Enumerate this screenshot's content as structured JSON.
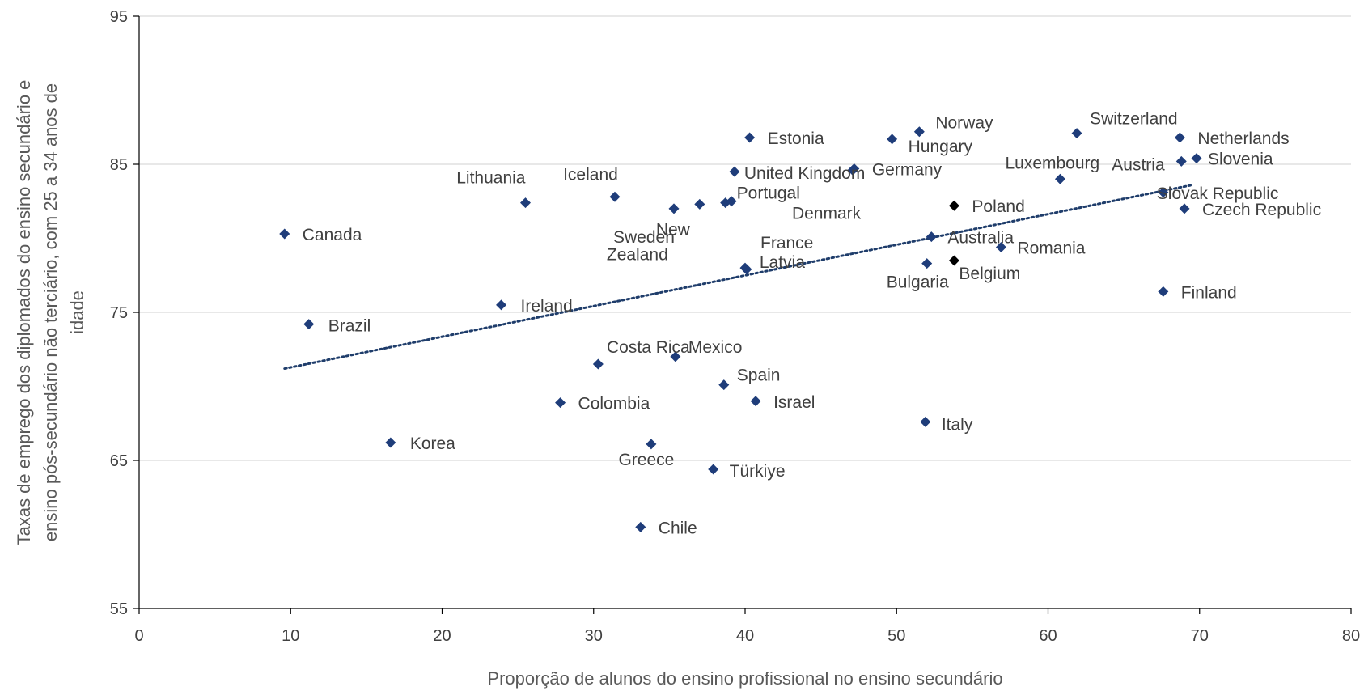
{
  "chart_data": {
    "type": "scatter",
    "xlabel": "Proporção de alunos do ensino profissional no ensino secundário",
    "ylabel_lines": [
      "Taxas de emprego dos diplomados do ensino secundário e",
      "ensino pós-secundário não terciário, com 25 a 34 anos de",
      "idade"
    ],
    "xlim": [
      0,
      80
    ],
    "ylim": [
      55,
      95
    ],
    "x_ticks": [
      "0",
      "10",
      "20",
      "30",
      "40",
      "50",
      "60",
      "70",
      "80"
    ],
    "y_ticks": [
      "55",
      "65",
      "75",
      "85",
      "95"
    ],
    "grid": "horizontal",
    "colors": {
      "point": "#1f3d7a",
      "highlight": "#000000",
      "trendline": "#1f3d6b",
      "grid": "#d9d9d9",
      "axis": "#000000"
    },
    "trendline": {
      "style": "dotted",
      "x": [
        9.6,
        69.5
      ],
      "y": [
        71.2,
        83.6
      ]
    },
    "points": [
      {
        "label": "Canada",
        "x": 9.6,
        "y": 80.3
      },
      {
        "label": "Brazil",
        "x": 11.2,
        "y": 74.2
      },
      {
        "label": "Korea",
        "x": 16.6,
        "y": 66.2
      },
      {
        "label": "Ireland",
        "x": 23.9,
        "y": 75.5
      },
      {
        "label": "Lithuania",
        "x": 25.5,
        "y": 82.4
      },
      {
        "label": "Colombia",
        "x": 27.8,
        "y": 68.9
      },
      {
        "label": "Costa Rica",
        "x": 30.3,
        "y": 71.5
      },
      {
        "label": "Iceland",
        "x": 31.4,
        "y": 82.8
      },
      {
        "label": "Chile",
        "x": 33.1,
        "y": 60.5
      },
      {
        "label": "Greece",
        "x": 33.8,
        "y": 66.1
      },
      {
        "label": "Sweden",
        "x": 35.3,
        "y": 82.0
      },
      {
        "label": "Mexico",
        "x": 35.4,
        "y": 72.0
      },
      {
        "label": "New Zealand",
        "x": 37.0,
        "y": 82.3
      },
      {
        "label": "Türkiye",
        "x": 37.9,
        "y": 64.4
      },
      {
        "label": "Spain",
        "x": 38.6,
        "y": 70.1
      },
      {
        "label": "Portugal",
        "x": 38.7,
        "y": 82.4
      },
      {
        "label": "",
        "x": 39.1,
        "y": 82.5
      },
      {
        "label": "United Kingdom",
        "x": 39.3,
        "y": 84.5
      },
      {
        "label": "France",
        "x": 40.0,
        "y": 78.0
      },
      {
        "label": "Latvia",
        "x": 40.1,
        "y": 77.9
      },
      {
        "label": "Estonia",
        "x": 40.3,
        "y": 86.8
      },
      {
        "label": "Israel",
        "x": 40.7,
        "y": 69.0
      },
      {
        "label": "Denmark",
        "x": 47.1,
        "y": 84.6
      },
      {
        "label": "Germany",
        "x": 47.2,
        "y": 84.7
      },
      {
        "label": "Hungary",
        "x": 49.7,
        "y": 86.7
      },
      {
        "label": "Norway",
        "x": 51.5,
        "y": 87.2
      },
      {
        "label": "Italy",
        "x": 51.9,
        "y": 67.6
      },
      {
        "label": "Bulgaria",
        "x": 52.0,
        "y": 78.3
      },
      {
        "label": "Australia",
        "x": 52.3,
        "y": 80.1
      },
      {
        "label": "Poland",
        "x": 53.8,
        "y": 82.2,
        "highlight": true
      },
      {
        "label": "Belgium",
        "x": 53.8,
        "y": 78.5,
        "highlight": true
      },
      {
        "label": "Romania",
        "x": 56.9,
        "y": 79.4
      },
      {
        "label": "Luxembourg",
        "x": 60.8,
        "y": 84.0
      },
      {
        "label": "Switzerland",
        "x": 61.9,
        "y": 87.1
      },
      {
        "label": "Slovak Republic",
        "x": 67.6,
        "y": 83.1
      },
      {
        "label": "Finland",
        "x": 67.6,
        "y": 76.4
      },
      {
        "label": "Netherlands",
        "x": 68.7,
        "y": 86.8
      },
      {
        "label": "Austria",
        "x": 68.8,
        "y": 85.2
      },
      {
        "label": "Czech Republic",
        "x": 69.0,
        "y": 82.0
      },
      {
        "label": "Slovenia",
        "x": 69.8,
        "y": 85.4
      }
    ]
  }
}
